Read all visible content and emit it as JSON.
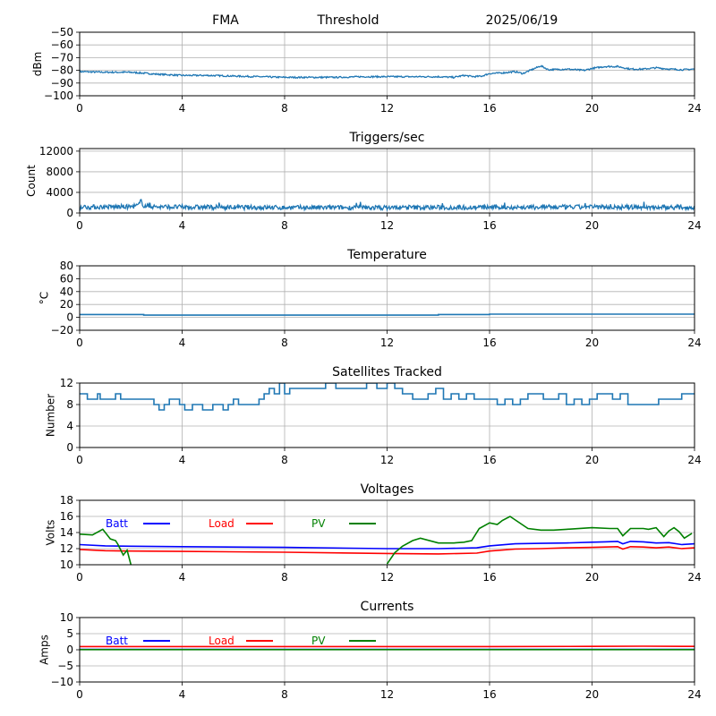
{
  "header": {
    "station": "FMA",
    "mode": "Threshold",
    "date": "2025/06/19"
  },
  "chart_data": [
    {
      "id": "threshold",
      "type": "line",
      "title": "",
      "xlabel": "",
      "ylabel": "dBm",
      "xlim": [
        0,
        24
      ],
      "ylim": [
        -100,
        -50
      ],
      "xticks": [
        0,
        4,
        8,
        12,
        16,
        20,
        24
      ],
      "yticks": [
        -100,
        -90,
        -80,
        -70,
        -60,
        -50
      ],
      "grid": true,
      "series": [
        {
          "color": "#1f77b4",
          "noise": 0.6,
          "x": [
            0,
            1,
            2,
            3,
            4,
            5,
            6,
            7,
            8,
            9,
            10,
            11,
            12,
            13,
            14,
            14.6,
            15,
            15.4,
            15.7,
            16,
            16.5,
            17,
            17.3,
            17.7,
            18,
            18.3,
            19,
            19.7,
            20,
            20.5,
            21,
            21.5,
            22,
            22.5,
            23,
            23.5,
            24
          ],
          "y": [
            -81,
            -81.5,
            -81.5,
            -83,
            -84,
            -84,
            -84.5,
            -85,
            -85.5,
            -85.5,
            -85.5,
            -85,
            -85,
            -85,
            -85,
            -85.5,
            -84,
            -85,
            -84.5,
            -82.5,
            -82,
            -81,
            -82.5,
            -79,
            -76.5,
            -79.5,
            -79,
            -80,
            -78.5,
            -77,
            -77,
            -79,
            -79,
            -78,
            -79,
            -79.5,
            -79
          ]
        }
      ]
    },
    {
      "id": "triggers",
      "type": "line",
      "title": "Triggers/sec",
      "xlabel": "",
      "ylabel": "Count",
      "xlim": [
        0,
        24
      ],
      "ylim": [
        0,
        12500
      ],
      "xticks": [
        0,
        4,
        8,
        12,
        16,
        20,
        24
      ],
      "yticks": [
        0,
        4000,
        8000,
        12000
      ],
      "grid": true,
      "series": [
        {
          "color": "#1f77b4",
          "noise": 450,
          "x": [
            0,
            2,
            2.3,
            2.4,
            2.5,
            3,
            4,
            8,
            12,
            16,
            20,
            24
          ],
          "y": [
            1150,
            1200,
            1500,
            2400,
            1400,
            1200,
            1150,
            1050,
            1050,
            1100,
            1150,
            1100
          ]
        }
      ]
    },
    {
      "id": "temperature",
      "type": "line",
      "title": "Temperature",
      "xlabel": "",
      "ylabel": "°C",
      "xlim": [
        0,
        24
      ],
      "ylim": [
        -20,
        80
      ],
      "xticks": [
        0,
        4,
        8,
        12,
        16,
        20,
        24
      ],
      "yticks": [
        -20,
        0,
        20,
        40,
        60,
        80
      ],
      "grid": true,
      "series": [
        {
          "color": "#1f77b4",
          "step": true,
          "x": [
            0,
            2.5,
            14,
            16,
            24
          ],
          "y": [
            4.5,
            3.5,
            4.5,
            5,
            5
          ]
        }
      ]
    },
    {
      "id": "satellites",
      "type": "line",
      "title": "Satellites Tracked",
      "xlabel": "",
      "ylabel": "Number",
      "xlim": [
        0,
        24
      ],
      "ylim": [
        0,
        12
      ],
      "xticks": [
        0,
        4,
        8,
        12,
        16,
        20,
        24
      ],
      "yticks": [
        0,
        4,
        8,
        12
      ],
      "grid": true,
      "series": [
        {
          "color": "#1f77b4",
          "step": true,
          "x": [
            0,
            0.3,
            0.7,
            0.8,
            1.2,
            1.4,
            1.6,
            1.7,
            2.0,
            2.3,
            2.6,
            2.9,
            3.1,
            3.3,
            3.5,
            3.9,
            4.1,
            4.4,
            4.6,
            4.8,
            5.2,
            5.4,
            5.6,
            5.8,
            6.0,
            6.2,
            6.4,
            7.0,
            7.2,
            7.4,
            7.6,
            7.8,
            8.0,
            8.2,
            8.5,
            8.8,
            9.2,
            9.6,
            10.0,
            10.4,
            10.8,
            11.2,
            11.6,
            12.0,
            12.3,
            12.6,
            13.0,
            13.3,
            13.6,
            13.9,
            14.2,
            14.5,
            14.8,
            15.1,
            15.4,
            15.7,
            16.0,
            16.3,
            16.6,
            16.9,
            17.2,
            17.5,
            17.8,
            18.1,
            18.4,
            18.7,
            19.0,
            19.3,
            19.6,
            19.9,
            20.2,
            20.5,
            20.8,
            21.1,
            21.4,
            21.7,
            22.0,
            22.3,
            22.6,
            22.9,
            23.2,
            23.5,
            23.8,
            24
          ],
          "y": [
            10,
            9,
            10,
            9,
            9,
            10,
            9,
            9,
            9,
            9,
            9,
            8,
            7,
            8,
            9,
            8,
            7,
            8,
            8,
            7,
            8,
            8,
            7,
            8,
            9,
            8,
            8,
            9,
            10,
            11,
            10,
            12,
            10,
            11,
            11,
            11,
            11,
            12,
            11,
            11,
            11,
            12,
            11,
            12,
            11,
            10,
            9,
            9,
            10,
            11,
            9,
            10,
            9,
            10,
            9,
            9,
            9,
            8,
            9,
            8,
            9,
            10,
            10,
            9,
            9,
            10,
            8,
            9,
            8,
            9,
            10,
            10,
            9,
            10,
            8,
            8,
            8,
            8,
            9,
            9,
            9,
            10,
            10,
            10
          ]
        }
      ]
    },
    {
      "id": "voltages",
      "type": "line",
      "title": "Voltages",
      "xlabel": "",
      "ylabel": "Volts",
      "xlim": [
        0,
        24
      ],
      "ylim": [
        10,
        18
      ],
      "xticks": [
        0,
        4,
        8,
        12,
        16,
        20,
        24
      ],
      "yticks": [
        10,
        12,
        14,
        16,
        18
      ],
      "grid": true,
      "legend": "top-left",
      "series": [
        {
          "name": "Batt",
          "color": "#0000ff",
          "x": [
            0,
            1,
            2,
            4,
            8,
            12,
            14,
            15.5,
            16,
            17,
            18,
            19,
            20,
            20.5,
            21,
            21.2,
            21.5,
            22,
            22.5,
            23,
            23.5,
            24
          ],
          "y": [
            12.5,
            12.35,
            12.3,
            12.25,
            12.15,
            12.0,
            12.0,
            12.1,
            12.35,
            12.6,
            12.65,
            12.7,
            12.8,
            12.85,
            12.9,
            12.6,
            12.9,
            12.85,
            12.7,
            12.75,
            12.5,
            12.6
          ]
        },
        {
          "name": "Load",
          "color": "#ff0000",
          "x": [
            0,
            1,
            2,
            4,
            8,
            12,
            14,
            15.5,
            16,
            17,
            18,
            19,
            20,
            20.5,
            21,
            21.2,
            21.5,
            22,
            22.5,
            23,
            23.5,
            24
          ],
          "y": [
            11.9,
            11.75,
            11.7,
            11.65,
            11.55,
            11.4,
            11.35,
            11.45,
            11.7,
            11.95,
            12.0,
            12.1,
            12.15,
            12.2,
            12.25,
            11.95,
            12.25,
            12.2,
            12.1,
            12.2,
            12.0,
            12.1
          ]
        },
        {
          "name": "PV",
          "color": "#008000",
          "x": [
            0,
            0.5,
            0.9,
            1.2,
            1.4,
            1.5,
            1.7,
            1.85,
            2.0,
            12.0,
            12.3,
            12.6,
            13.0,
            13.3,
            14.0,
            14.6,
            15.0,
            15.3,
            15.6,
            16.0,
            16.3,
            16.5,
            16.8,
            17.5,
            18.0,
            18.5,
            19.0,
            20.0,
            20.7,
            21.0,
            21.2,
            21.5,
            22.0,
            22.2,
            22.5,
            22.8,
            23.0,
            23.2,
            23.4,
            23.6,
            23.9
          ],
          "y": [
            13.8,
            13.7,
            14.4,
            13.2,
            13.0,
            12.5,
            11.2,
            11.8,
            10.0,
            10.1,
            11.5,
            12.3,
            13.0,
            13.3,
            12.7,
            12.7,
            12.8,
            13.0,
            14.5,
            15.2,
            15.0,
            15.5,
            16.0,
            14.5,
            14.3,
            14.3,
            14.4,
            14.6,
            14.5,
            14.5,
            13.6,
            14.5,
            14.5,
            14.4,
            14.6,
            13.5,
            14.2,
            14.6,
            14.1,
            13.3,
            13.9
          ],
          "gaps": [
            [
              2.0,
              12.0
            ]
          ]
        }
      ]
    },
    {
      "id": "currents",
      "type": "line",
      "title": "Currents",
      "xlabel": "",
      "ylabel": "Amps",
      "xlim": [
        0,
        24
      ],
      "ylim": [
        -10,
        10
      ],
      "xticks": [
        0,
        4,
        8,
        12,
        16,
        20,
        24
      ],
      "yticks": [
        -10,
        -5,
        0,
        5,
        10
      ],
      "grid": true,
      "legend": "top-left",
      "series": [
        {
          "name": "Batt",
          "color": "#0000ff",
          "x": [
            0,
            24
          ],
          "y": [
            0.1,
            0.1
          ]
        },
        {
          "name": "Load",
          "color": "#ff0000",
          "x": [
            0,
            4,
            8,
            12,
            16,
            20,
            22,
            24
          ],
          "y": [
            1.0,
            1.0,
            1.0,
            1.0,
            1.0,
            1.05,
            1.1,
            1.05
          ]
        },
        {
          "name": "PV",
          "color": "#008000",
          "x": [
            0,
            24
          ],
          "y": [
            0.05,
            0.05
          ]
        }
      ]
    }
  ]
}
